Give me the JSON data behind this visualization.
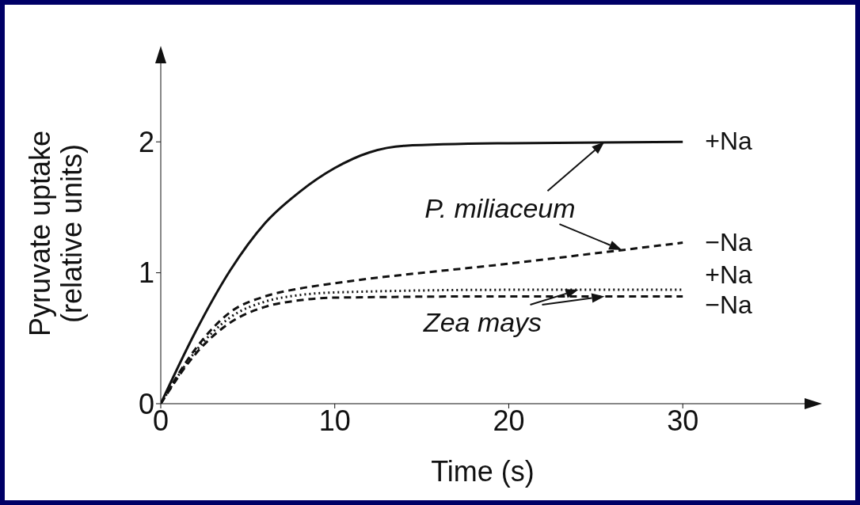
{
  "chart_data": {
    "type": "line",
    "xlabel": "Time (s)",
    "ylabel": "Pyruvate uptake\n(relative units)",
    "xlim": [
      0,
      37
    ],
    "ylim": [
      0,
      2.6
    ],
    "xticks": [
      0,
      10,
      20,
      30
    ],
    "yticks": [
      0,
      1,
      2
    ],
    "grid": false,
    "legend": false,
    "marker": "none",
    "series": [
      {
        "name": "+Na",
        "color": "#111111",
        "line_style": "solid",
        "x": [
          0,
          2,
          4,
          6,
          8,
          10,
          12,
          14,
          20,
          30
        ],
        "values": [
          0,
          0.55,
          1.02,
          1.38,
          1.62,
          1.8,
          1.92,
          1.97,
          1.99,
          2.0
        ]
      },
      {
        "name": "−Na",
        "color": "#111111",
        "line_style": "dashed",
        "x": [
          0,
          2,
          4,
          6,
          8,
          10,
          20,
          30
        ],
        "values": [
          0,
          0.42,
          0.7,
          0.82,
          0.88,
          0.92,
          1.07,
          1.23
        ]
      },
      {
        "name": "+Na",
        "color": "#111111",
        "line_style": "dotted",
        "x": [
          0,
          2,
          4,
          6,
          8,
          10,
          20,
          30
        ],
        "values": [
          0,
          0.4,
          0.66,
          0.78,
          0.83,
          0.85,
          0.87,
          0.87
        ]
      },
      {
        "name": "−Na",
        "color": "#111111",
        "line_style": "dashed",
        "x": [
          0,
          2,
          4,
          6,
          8,
          10,
          20,
          30
        ],
        "values": [
          0,
          0.38,
          0.62,
          0.74,
          0.79,
          0.81,
          0.82,
          0.82
        ]
      }
    ],
    "annotations": [
      {
        "text": "P. miliaceum",
        "x": 25.5,
        "y": 2.0
      },
      {
        "text": "Zea mays",
        "x": 24,
        "y": 0.87
      }
    ]
  }
}
